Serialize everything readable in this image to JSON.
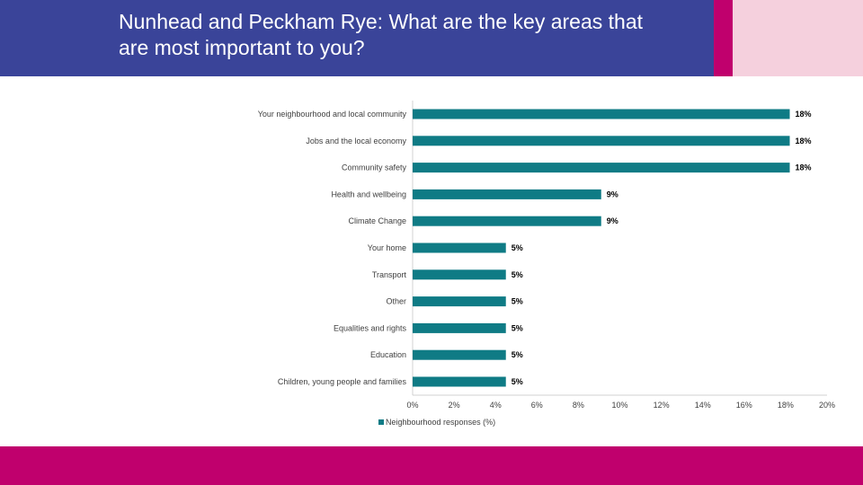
{
  "header": {
    "title": "Nunhead and Peckham Rye: What are the key areas that are most important to you?"
  },
  "colors": {
    "header_bg": "#3a4499",
    "accent_magenta": "#c0006d",
    "accent_pink": "#f5d0dd",
    "bar": "#0f7b85"
  },
  "chart_data": {
    "type": "bar",
    "orientation": "horizontal",
    "categories": [
      "Your neighbourhood and local community",
      "Jobs and the local economy",
      "Community safety",
      "Health and wellbeing",
      "Climate Change",
      "Your home",
      "Transport",
      "Other",
      "Equalities and rights",
      "Education",
      "Children, young people and families"
    ],
    "series": [
      {
        "name": "Neighbourhood responses (%)",
        "values": [
          18.2,
          18.2,
          18.2,
          9.1,
          9.1,
          4.5,
          4.5,
          4.5,
          4.5,
          4.5,
          4.5
        ],
        "labels": [
          "18%",
          "18%",
          "18%",
          "9%",
          "9%",
          "5%",
          "5%",
          "5%",
          "5%",
          "5%",
          "5%"
        ]
      }
    ],
    "xlim": [
      0,
      20
    ],
    "xticks": [
      "0%",
      "2%",
      "4%",
      "6%",
      "8%",
      "10%",
      "12%",
      "14%",
      "16%",
      "18%",
      "20%"
    ],
    "grid": false,
    "legend": "bottom",
    "title": "",
    "xlabel": "",
    "ylabel": ""
  }
}
